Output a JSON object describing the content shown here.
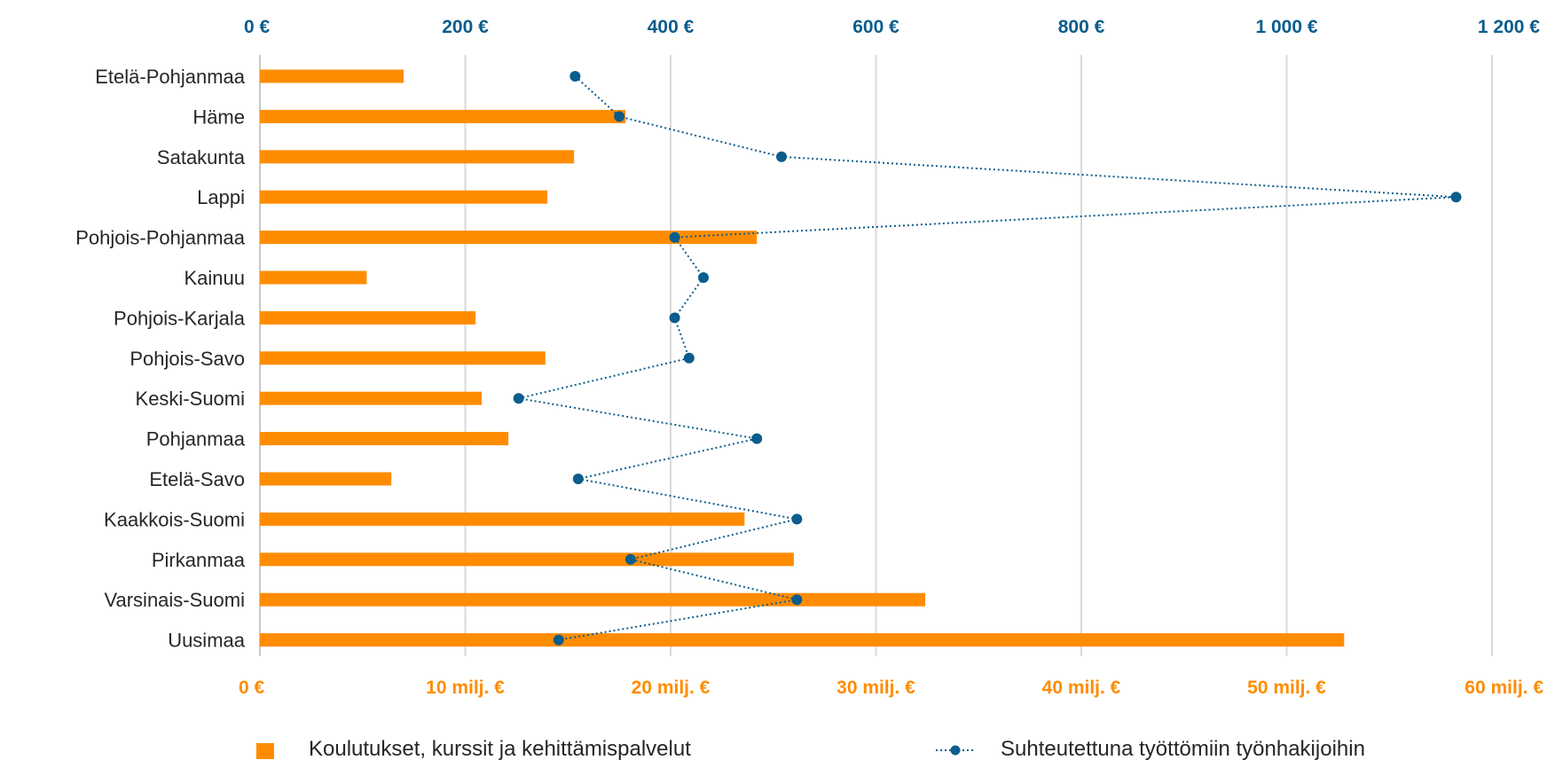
{
  "chart_data": {
    "type": "bar",
    "orientation": "horizontal",
    "categories": [
      "Etelä-Pohjanmaa",
      "Häme",
      "Satakunta",
      "Lappi",
      "Pohjois-Pohjanmaa",
      "Kainuu",
      "Pohjois-Karjala",
      "Pohjois-Savo",
      "Keski-Suomi",
      "Pohjanmaa",
      "Etelä-Savo",
      "Kaakkois-Suomi",
      "Pirkanmaa",
      "Varsinais-Suomi",
      "Uusimaa"
    ],
    "series": [
      {
        "name": "Koulutukset, kurssit ja kehittämispalvelut",
        "type": "bar",
        "axis": "bottom",
        "color": "#ff8c00",
        "values": [
          7.0,
          17.8,
          15.3,
          14.0,
          24.2,
          5.2,
          10.5,
          13.9,
          10.8,
          12.1,
          6.4,
          23.6,
          26.0,
          32.4,
          52.8
        ]
      },
      {
        "name": "Suhteutettuna työttömiin työnhakijoihin",
        "type": "line",
        "style": "dotted",
        "marker": "circle",
        "axis": "top",
        "color": "#0a5d8c",
        "values": [
          307,
          350,
          508,
          1165,
          404,
          432,
          404,
          418,
          252,
          484,
          310,
          523,
          361,
          523,
          291
        ]
      }
    ],
    "axes": {
      "bottom": {
        "range": [
          0,
          60
        ],
        "ticks": [
          0,
          10,
          20,
          30,
          40,
          50,
          60
        ],
        "tick_labels": [
          "0 €",
          "10 milj. €",
          "20 milj. €",
          "30 milj. €",
          "40 milj. €",
          "50 milj. €",
          "60 milj. €"
        ]
      },
      "top": {
        "range": [
          0,
          1200
        ],
        "ticks": [
          0,
          200,
          400,
          600,
          800,
          1000,
          1200
        ],
        "tick_labels": [
          "0 €",
          "200 €",
          "400 €",
          "600 €",
          "800 €",
          "1 000 €",
          "1 200 €"
        ]
      }
    },
    "grid": "vertical",
    "legend": "bottom",
    "title": ""
  }
}
